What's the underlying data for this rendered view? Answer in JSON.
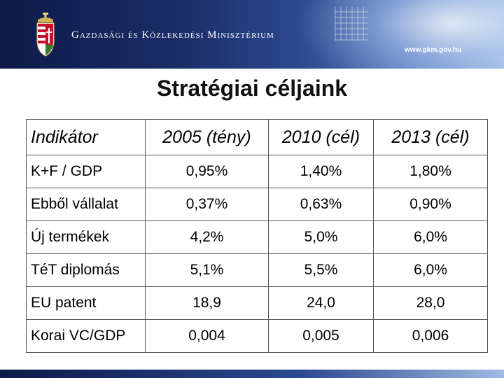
{
  "header": {
    "ministry_name": "Gazdasági és Közlekedési Minisztérium",
    "url": "www.gkm.gov.hu"
  },
  "slide": {
    "title": "Stratégiai céljaink"
  },
  "table": {
    "columns": [
      "Indikátor",
      "2005 (tény)",
      "2010 (cél)",
      "2013 (cél)"
    ],
    "rows": [
      [
        "K+F / GDP",
        "0,95%",
        "1,40%",
        "1,80%"
      ],
      [
        "Ebből vállalat",
        "0,37%",
        "0,63%",
        "0,90%"
      ],
      [
        "Új termékek",
        "4,2%",
        "5,0%",
        "6,0%"
      ],
      [
        "TéT diplomás",
        "5,1%",
        "5,5%",
        "6,0%"
      ],
      [
        "EU patent",
        "18,9",
        "24,0",
        "28,0"
      ],
      [
        "Korai VC/GDP",
        "0,004",
        "0,005",
        "0,006"
      ]
    ]
  },
  "colors": {
    "banner_dark": "#0d1a4a",
    "banner_light": "#9fbbe3"
  }
}
